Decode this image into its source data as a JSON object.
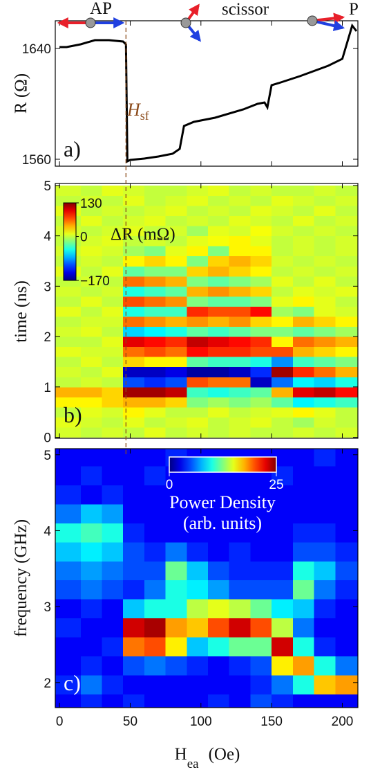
{
  "chart_data": [
    {
      "type": "line",
      "ylabel": "R (Ω)",
      "panel_label": "a)",
      "annotations": {
        "ap": "AP",
        "scissor": "scissor",
        "p": "P",
        "hsf": {
          "text": "H",
          "sub": "sf",
          "value": 47
        }
      },
      "xlim": [
        -3,
        211
      ],
      "ylim": [
        1555,
        1660
      ],
      "yticks": [
        1560,
        1640
      ],
      "color": "#000000",
      "x": [
        0,
        5,
        15,
        25,
        35,
        45,
        47,
        48,
        50,
        60,
        70,
        80,
        85,
        88,
        95,
        110,
        130,
        140,
        145,
        147,
        150,
        155,
        170,
        190,
        200,
        207,
        210
      ],
      "y": [
        1641,
        1641,
        1643,
        1646,
        1646,
        1645,
        1643,
        1558.5,
        1559.5,
        1560.5,
        1562,
        1564,
        1567.5,
        1584,
        1587,
        1590,
        1596,
        1600,
        1601,
        1597.5,
        1613.5,
        1615,
        1620,
        1627.5,
        1632.5,
        1656.5,
        1652.5
      ]
    },
    {
      "type": "heatmap",
      "ylabel": "time (ns)",
      "panel_label": "b)",
      "xlim": [
        -3,
        211
      ],
      "ylim": [
        -0.02,
        5.04
      ],
      "yticks": [
        0,
        1,
        2,
        3,
        4,
        5
      ],
      "colorbar": {
        "label": "ΔR (mΩ)",
        "lim": [
          -170,
          130
        ],
        "ticks": [
          130,
          0,
          {
            "value": -170,
            "label": "−170"
          }
        ]
      },
      "x_edges": [
        -3,
        15,
        30,
        45,
        60,
        75,
        90,
        105,
        120,
        135,
        150,
        165,
        180,
        195,
        211
      ],
      "y_edges": [
        0,
        0.2,
        0.4,
        0.6,
        0.8,
        1.0,
        1.2,
        1.4,
        1.6,
        1.8,
        2.0,
        2.2,
        2.4,
        2.6,
        2.8,
        3.0,
        3.2,
        3.4,
        3.6,
        3.8,
        4.0,
        4.2,
        4.4,
        4.6,
        4.8,
        5.0
      ],
      "z": [
        [
          5,
          0,
          5,
          0,
          10,
          0,
          5,
          0,
          5,
          0,
          0,
          5,
          0,
          5
        ],
        [
          10,
          5,
          0,
          10,
          0,
          5,
          10,
          0,
          5,
          10,
          0,
          -10,
          5,
          0
        ],
        [
          0,
          10,
          5,
          20,
          10,
          0,
          0,
          10,
          0,
          5,
          10,
          20,
          10,
          0
        ],
        [
          20,
          20,
          30,
          40,
          40,
          30,
          -20,
          -10,
          -20,
          -10,
          -30,
          -60,
          -50,
          -40
        ],
        [
          40,
          40,
          30,
          120,
          120,
          110,
          -40,
          -50,
          -40,
          -30,
          40,
          100,
          110,
          90
        ],
        [
          0,
          5,
          0,
          -110,
          -120,
          -110,
          70,
          60,
          60,
          -150,
          -100,
          -60,
          -70,
          -50
        ],
        [
          5,
          0,
          10,
          -150,
          -150,
          -140,
          -160,
          -160,
          -150,
          -120,
          120,
          80,
          60,
          40
        ],
        [
          0,
          10,
          0,
          30,
          20,
          20,
          -30,
          -40,
          -40,
          -50,
          -90,
          -40,
          -30,
          -20
        ],
        [
          10,
          5,
          5,
          60,
          70,
          60,
          90,
          80,
          80,
          70,
          70,
          40,
          30,
          20
        ],
        [
          0,
          0,
          10,
          100,
          90,
          80,
          110,
          100,
          90,
          80,
          20,
          60,
          50,
          40
        ],
        [
          5,
          10,
          0,
          -70,
          -60,
          -50,
          -30,
          -40,
          -30,
          -20,
          -20,
          -30,
          -20,
          -10
        ],
        [
          0,
          5,
          5,
          60,
          50,
          40,
          50,
          40,
          50,
          30,
          20,
          40,
          30,
          20
        ],
        [
          10,
          0,
          10,
          -50,
          -40,
          -40,
          80,
          70,
          70,
          90,
          -10,
          -20,
          10,
          5
        ],
        [
          0,
          10,
          0,
          70,
          60,
          50,
          -20,
          -30,
          -30,
          -20,
          10,
          20,
          10,
          0
        ],
        [
          5,
          0,
          5,
          -50,
          -40,
          -30,
          40,
          50,
          40,
          30,
          0,
          10,
          5,
          10
        ],
        [
          0,
          5,
          0,
          60,
          50,
          40,
          -20,
          -30,
          -20,
          -10,
          10,
          0,
          10,
          0
        ],
        [
          10,
          0,
          10,
          -30,
          -20,
          -20,
          30,
          40,
          30,
          20,
          0,
          5,
          0,
          5
        ],
        [
          0,
          5,
          0,
          20,
          30,
          20,
          -20,
          30,
          40,
          30,
          5,
          0,
          5,
          0
        ],
        [
          5,
          10,
          5,
          -10,
          -20,
          10,
          20,
          -20,
          20,
          20,
          0,
          5,
          0,
          5
        ],
        [
          0,
          5,
          10,
          0,
          5,
          0,
          10,
          15,
          20,
          10,
          0,
          5,
          0,
          5
        ],
        [
          5,
          0,
          5,
          10,
          0,
          5,
          -10,
          10,
          5,
          15,
          5,
          0,
          5,
          0
        ],
        [
          0,
          10,
          0,
          5,
          10,
          0,
          5,
          0,
          10,
          5,
          0,
          10,
          0,
          5
        ],
        [
          10,
          0,
          5,
          0,
          5,
          10,
          0,
          5,
          0,
          10,
          5,
          0,
          10,
          0
        ],
        [
          0,
          5,
          0,
          10,
          0,
          5,
          10,
          0,
          5,
          0,
          10,
          5,
          0,
          5
        ],
        [
          5,
          0,
          10,
          5,
          0,
          0,
          5,
          10,
          0,
          5,
          0,
          0,
          5,
          0
        ]
      ]
    },
    {
      "type": "heatmap",
      "ylabel": "frequency (GHz)",
      "panel_label": "c)",
      "xlabel": {
        "text": "H",
        "sub": "ea",
        "unit": "(Oe)"
      },
      "xlim": [
        -3,
        211
      ],
      "ylim": [
        1.67,
        5.08
      ],
      "xticks": [
        0,
        50,
        100,
        150,
        200
      ],
      "yticks": [
        2,
        3,
        4,
        5
      ],
      "colorbar": {
        "label": [
          "Power Density",
          "(arb. units)"
        ],
        "lim": [
          0,
          25
        ],
        "ticks": [
          0,
          25
        ]
      },
      "x_edges": [
        -3,
        15,
        30,
        45,
        60,
        75,
        90,
        105,
        120,
        135,
        150,
        165,
        180,
        195,
        211
      ],
      "y_edges": [
        1.6,
        1.85,
        2.1,
        2.35,
        2.6,
        2.85,
        3.1,
        3.35,
        3.6,
        3.85,
        4.1,
        4.35,
        4.6,
        4.85,
        5.1
      ],
      "z": [
        [
          3,
          4,
          3,
          4,
          3,
          3,
          3,
          4,
          3,
          5,
          4,
          3,
          3,
          3
        ],
        [
          4,
          6,
          4,
          3,
          3,
          3,
          3,
          3,
          3,
          4,
          6,
          10,
          17,
          18
        ],
        [
          3,
          4,
          3,
          5,
          6,
          5,
          4,
          3,
          4,
          5,
          16,
          18,
          10,
          6
        ],
        [
          3,
          3,
          4,
          19,
          20,
          16,
          8,
          10,
          12,
          12,
          23,
          10,
          4,
          3
        ],
        [
          4,
          3,
          3,
          23,
          24,
          18,
          17,
          20,
          23,
          20,
          14,
          6,
          3,
          3
        ],
        [
          3,
          4,
          3,
          8,
          10,
          10,
          14,
          15,
          14,
          12,
          9,
          8,
          4,
          3
        ],
        [
          5,
          6,
          5,
          4,
          6,
          10,
          9,
          7,
          5,
          5,
          5,
          12,
          6,
          4
        ],
        [
          6,
          7,
          6,
          5,
          5,
          12,
          8,
          5,
          4,
          4,
          4,
          10,
          8,
          5
        ],
        [
          8,
          9,
          8,
          5,
          4,
          6,
          4,
          3,
          4,
          3,
          3,
          5,
          5,
          4
        ],
        [
          10,
          11,
          10,
          4,
          3,
          3,
          3,
          3,
          3,
          3,
          3,
          4,
          4,
          3
        ],
        [
          6,
          8,
          7,
          3,
          3,
          3,
          3,
          3,
          3,
          3,
          3,
          3,
          3,
          3
        ],
        [
          4,
          3,
          4,
          3,
          3,
          3,
          3,
          3,
          3,
          3,
          3,
          3,
          3,
          3
        ],
        [
          3,
          4,
          3,
          3,
          4,
          3,
          3,
          3,
          3,
          3,
          4,
          3,
          3,
          3
        ],
        [
          3,
          3,
          3,
          3,
          3,
          4,
          3,
          3,
          3,
          3,
          3,
          3,
          4,
          3
        ]
      ]
    }
  ]
}
